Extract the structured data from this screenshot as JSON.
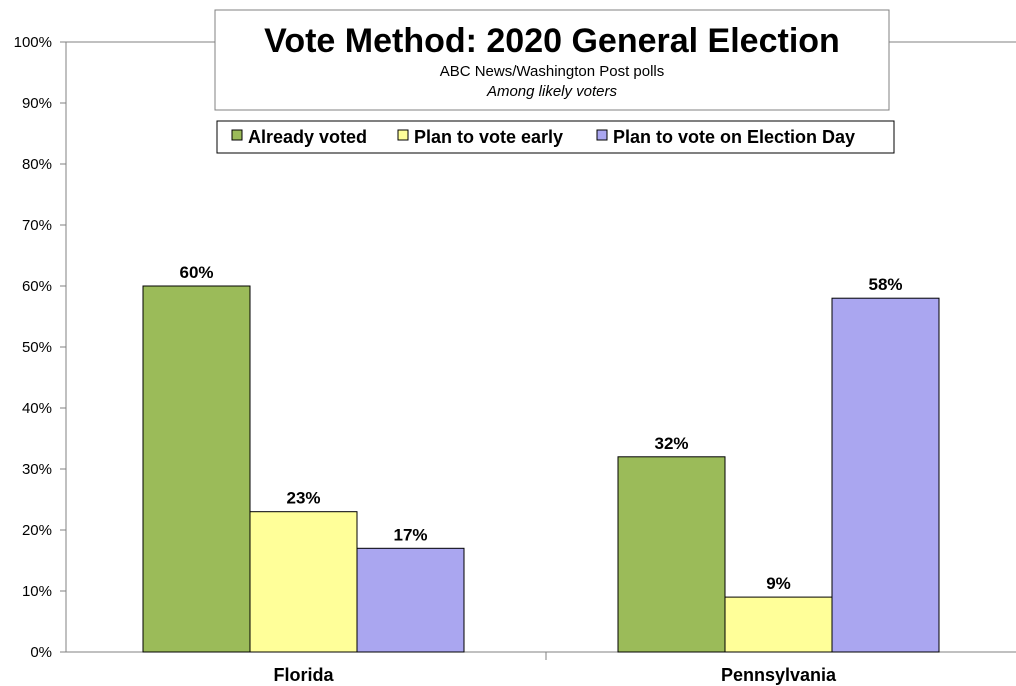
{
  "chart_data": {
    "type": "bar",
    "title": "Vote Method: 2020 General Election",
    "subtitle": "ABC News/Washington Post polls",
    "subtitle2": "Among likely voters",
    "categories": [
      "Florida",
      "Pennsylvania"
    ],
    "series": [
      {
        "name": "Already voted",
        "values": [
          60,
          32
        ],
        "color": "#9bbb59"
      },
      {
        "name": "Plan to vote early",
        "values": [
          23,
          9
        ],
        "color": "#ffff99"
      },
      {
        "name": "Plan to vote on Election Day",
        "values": [
          17,
          58
        ],
        "color": "#aaa6f0"
      }
    ],
    "ylim": [
      0,
      100
    ],
    "yticks": [
      0,
      10,
      20,
      30,
      40,
      50,
      60,
      70,
      80,
      90,
      100
    ],
    "ytick_labels": [
      "0%",
      "10%",
      "20%",
      "30%",
      "40%",
      "50%",
      "60%",
      "70%",
      "80%",
      "90%",
      "100%"
    ],
    "data_labels": [
      [
        "60%",
        "32%"
      ],
      [
        "23%",
        "9%"
      ],
      [
        "17%",
        "58%"
      ]
    ],
    "legend_position": "top",
    "grid": false
  }
}
